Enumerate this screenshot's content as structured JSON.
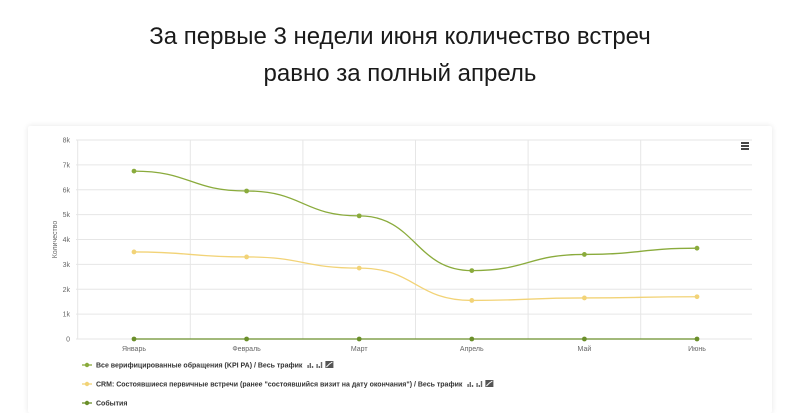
{
  "headline": {
    "line1": "За первые 3 недели июня количество встреч",
    "line2": "равно за полный апрель"
  },
  "chart_data": {
    "type": "line",
    "title": "",
    "xlabel": "",
    "ylabel": "Количество",
    "categories": [
      "Январь",
      "Февраль",
      "Март",
      "Апрель",
      "Май",
      "Июнь"
    ],
    "ylim": [
      0,
      8000
    ],
    "yticks": [
      0,
      1000,
      2000,
      3000,
      4000,
      5000,
      6000,
      7000,
      8000
    ],
    "ytick_labels": [
      "0",
      "1k",
      "2k",
      "3k",
      "4k",
      "5k",
      "6k",
      "7k",
      "8k"
    ],
    "grid": true,
    "legend_position": "bottom-left",
    "series": [
      {
        "name": "Все верифицированные обращения (KPI PA) / Весь трафик",
        "color": "#8aab3c",
        "values": [
          6750,
          5950,
          4950,
          2750,
          3400,
          3650
        ]
      },
      {
        "name": "CRM: Состоявшиеся первичные встречи (ранее \"состоявшийся визит на дату окончания\") / Весь трафик",
        "color": "#f2d377",
        "values": [
          3500,
          3300,
          2850,
          1550,
          1650,
          1700
        ]
      },
      {
        "name": "События",
        "color": "#6b8f2a",
        "values": [
          0,
          0,
          0,
          0,
          0,
          0
        ]
      }
    ]
  },
  "icons": {
    "menu": "hamburger-menu-icon",
    "bar_chart": "bar-chart-icon",
    "line_chart": "line-chart-icon"
  }
}
